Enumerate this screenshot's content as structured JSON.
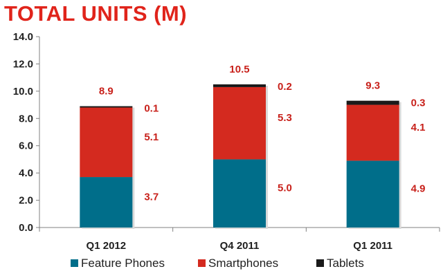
{
  "chart_data": {
    "type": "bar",
    "stacked": true,
    "title": "TOTAL UNITS (M)",
    "categories": [
      "Q1 2012",
      "Q4 2011",
      "Q1 2011"
    ],
    "series": [
      {
        "name": "Feature Phones",
        "values": [
          3.7,
          5.0,
          4.9
        ],
        "color": "#006e8a"
      },
      {
        "name": "Smartphones",
        "values": [
          5.1,
          5.3,
          4.1
        ],
        "color": "#d42a1f"
      },
      {
        "name": "Tablets",
        "values": [
          0.1,
          0.2,
          0.3
        ],
        "color": "#1a1a1a"
      }
    ],
    "totals": [
      8.9,
      10.5,
      9.3
    ],
    "total_labels": [
      "8.9",
      "10.5",
      "9.3"
    ],
    "value_labels": [
      [
        "3.7",
        "5.0",
        "4.9"
      ],
      [
        "5.1",
        "5.3",
        "4.1"
      ],
      [
        "0.1",
        "0.2",
        "0.3"
      ]
    ],
    "ylim": [
      0,
      14
    ],
    "yticks": [
      "0.0",
      "2.0",
      "4.0",
      "6.0",
      "8.0",
      "10.0",
      "12.0",
      "14.0"
    ],
    "ytick_values": [
      0,
      2,
      4,
      6,
      8,
      10,
      12,
      14
    ],
    "xlabel": "",
    "ylabel": "",
    "legend_position": "bottom",
    "label_color": "#c8211b"
  }
}
